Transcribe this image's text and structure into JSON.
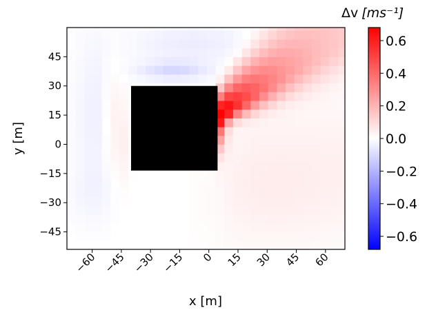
{
  "chart_data": {
    "type": "heatmap",
    "xlabel": "x [m]",
    "ylabel": "y [m]",
    "colorbar_label_main": "Δv",
    "colorbar_label_unit": "[ms⁻¹]",
    "xlim": [
      -73,
      70
    ],
    "ylim": [
      -54,
      60
    ],
    "x_ticks": [
      -60,
      -45,
      -30,
      -15,
      0,
      15,
      30,
      45,
      60
    ],
    "x_tick_labels": [
      "−60",
      "−45",
      "−30",
      "−15",
      "0",
      "15",
      "30",
      "45",
      "60"
    ],
    "y_ticks": [
      45,
      30,
      15,
      0,
      -15,
      -30,
      -45
    ],
    "y_tick_labels": [
      "45",
      "30",
      "15",
      "0",
      "−15",
      "−30",
      "−45"
    ],
    "colorbar": {
      "cmap": "bwr",
      "vmin": -0.68,
      "vmax": 0.68,
      "ticks": [
        0.6,
        0.4,
        0.2,
        0.0,
        -0.2,
        -0.4,
        -0.6
      ],
      "tick_labels": [
        "0.6",
        "0.4",
        "0.2",
        "0.0",
        "−0.2",
        "−0.4",
        "−0.6"
      ],
      "colors": {
        "negative": "#0000ff",
        "zero": "#ffffff",
        "positive": "#ff0000"
      }
    },
    "obstacle": {
      "x_range": [
        -40,
        4.5
      ],
      "y_range": [
        -13.5,
        30
      ],
      "color": "#000000"
    },
    "grid": false,
    "field_regions": [
      {
        "description_key": "wake_plume",
        "peak_value": 0.68,
        "peak_at": [
          11,
          17
        ]
      },
      {
        "description_key": "upstream_low",
        "min_value": -0.1,
        "at": [
          -17,
          38
        ]
      }
    ]
  }
}
